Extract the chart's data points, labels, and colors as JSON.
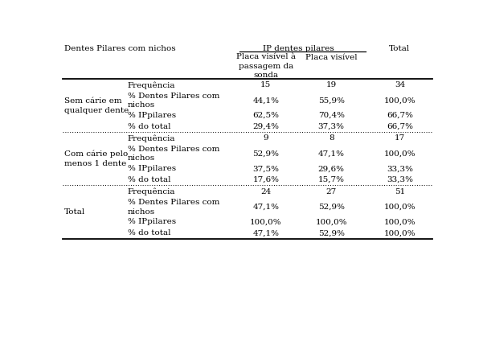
{
  "rows": [
    {
      "group": "Sem cárie em\nqualquer dente",
      "subrows": [
        [
          "Frequência",
          "15",
          "19",
          "34"
        ],
        [
          "% Dentes Pilares com\nnichos",
          "44,1%",
          "55,9%",
          "100,0%"
        ],
        [
          "% IPpilares",
          "62,5%",
          "70,4%",
          "66,7%"
        ],
        [
          "% do total",
          "29,4%",
          "37,3%",
          "66,7%"
        ]
      ]
    },
    {
      "group": "Com cárie pelo\nmenos 1 dente",
      "subrows": [
        [
          "Frequência",
          "9",
          "8",
          "17"
        ],
        [
          "% Dentes Pilares com\nnichos",
          "52,9%",
          "47,1%",
          "100,0%"
        ],
        [
          "% IPpilares",
          "37,5%",
          "29,6%",
          "33,3%"
        ],
        [
          "% do total",
          "17,6%",
          "15,7%",
          "33,3%"
        ]
      ]
    },
    {
      "group": "Total",
      "subrows": [
        [
          "Frequência",
          "24",
          "27",
          "51"
        ],
        [
          "% Dentes Pilares com\nnichos",
          "47,1%",
          "52,9%",
          "100,0%"
        ],
        [
          "% IPpilares",
          "100,0%",
          "100,0%",
          "100,0%"
        ],
        [
          "% do total",
          "47,1%",
          "52,9%",
          "100,0%"
        ]
      ]
    }
  ],
  "font_size": 7.5,
  "font_family": "DejaVu Serif",
  "bg_color": "#ffffff",
  "text_color": "#000000",
  "header1_left": "Dentes Pilares com nichos",
  "header1_mid": "IP dentes pilares",
  "header1_right": "Total",
  "subheader_col2": "Placa visível à\npassagem da\nsonda",
  "subheader_col3": "Placa visível"
}
